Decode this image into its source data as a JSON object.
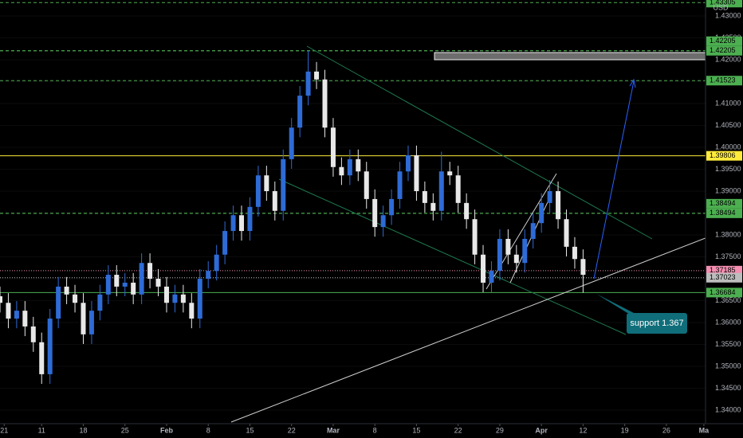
{
  "chart_data": {
    "type": "candlestick",
    "currency": "USD",
    "annotation": "support 1.367",
    "colors": {
      "up": "#2e6bd6",
      "down": "#e8e8e8"
    },
    "x": [
      -5,
      -4,
      -3,
      -2,
      -1,
      0,
      1,
      2,
      3,
      4,
      5,
      6,
      7,
      8,
      9,
      10,
      11,
      12,
      13,
      14,
      15,
      16,
      17,
      18,
      19,
      20,
      21,
      22,
      23,
      24,
      25,
      26,
      27,
      28,
      29,
      30,
      31,
      32,
      33,
      34,
      35,
      36,
      37,
      38,
      39,
      40,
      41,
      42,
      43,
      44,
      45,
      46,
      47,
      48,
      49,
      50,
      51,
      52,
      53,
      54,
      55,
      56,
      57,
      58,
      59,
      60,
      61,
      62,
      63,
      64,
      65
    ],
    "open": [
      1.366,
      1.3645,
      1.3609,
      1.3627,
      1.3591,
      1.3555,
      1.3482,
      1.3609,
      1.3682,
      1.3664,
      1.3645,
      1.3573,
      1.3627,
      1.3664,
      1.3709,
      1.3682,
      1.3691,
      1.3664,
      1.3736,
      1.37,
      1.3682,
      1.3645,
      1.3664,
      1.3645,
      1.3609,
      1.37,
      1.3718,
      1.3755,
      1.3809,
      1.3845,
      1.3809,
      1.3864,
      1.3936,
      1.39,
      1.3855,
      1.3973,
      1.4045,
      1.4118,
      1.4173,
      1.4155,
      1.4045,
      1.3955,
      1.3936,
      1.3973,
      1.3945,
      1.3882,
      1.3818,
      1.3845,
      1.3882,
      1.3945,
      1.3982,
      1.39,
      1.3873,
      1.3855,
      1.3945,
      1.3936,
      1.3873,
      1.3836,
      1.3755,
      1.3691,
      1.3718,
      1.3791,
      1.3755,
      1.3736,
      1.3791,
      1.3827,
      1.3873,
      1.39,
      1.3836,
      1.3773,
      1.3745
    ],
    "high": [
      1.3682,
      1.3667,
      1.3649,
      1.3649,
      1.3613,
      1.3577,
      1.3631,
      1.3704,
      1.3704,
      1.3686,
      1.3667,
      1.3649,
      1.3686,
      1.3731,
      1.3731,
      1.3713,
      1.3713,
      1.3758,
      1.3758,
      1.3722,
      1.3704,
      1.3686,
      1.3686,
      1.3667,
      1.3722,
      1.374,
      1.3777,
      1.3831,
      1.3867,
      1.3867,
      1.3886,
      1.3958,
      1.3958,
      1.3922,
      1.3995,
      1.4067,
      1.414,
      1.422,
      1.4195,
      1.4177,
      1.4067,
      1.3977,
      1.3995,
      1.3995,
      1.3967,
      1.3904,
      1.3867,
      1.3904,
      1.3967,
      1.4004,
      1.4004,
      1.3922,
      1.3895,
      1.399,
      1.3967,
      1.3958,
      1.3895,
      1.3858,
      1.3777,
      1.374,
      1.3813,
      1.3813,
      1.3777,
      1.3813,
      1.3849,
      1.3895,
      1.3925,
      1.3922,
      1.3858,
      1.3795,
      1.3767
    ],
    "low": [
      1.3623,
      1.3587,
      1.3587,
      1.3569,
      1.3533,
      1.346,
      1.346,
      1.3587,
      1.3642,
      1.3623,
      1.3551,
      1.3551,
      1.3605,
      1.3642,
      1.366,
      1.366,
      1.3642,
      1.3642,
      1.3678,
      1.366,
      1.3623,
      1.3623,
      1.3623,
      1.3587,
      1.3587,
      1.3678,
      1.3696,
      1.3733,
      1.3787,
      1.3787,
      1.3787,
      1.3842,
      1.3878,
      1.3833,
      1.3833,
      1.3951,
      1.4023,
      1.4096,
      1.4133,
      1.4023,
      1.3933,
      1.3914,
      1.3914,
      1.3923,
      1.386,
      1.3796,
      1.3796,
      1.3823,
      1.386,
      1.3923,
      1.3878,
      1.3851,
      1.3833,
      1.3833,
      1.3914,
      1.3851,
      1.3814,
      1.3733,
      1.3669,
      1.3669,
      1.3696,
      1.3733,
      1.3714,
      1.3714,
      1.3769,
      1.3805,
      1.3851,
      1.3814,
      1.3751,
      1.3723,
      1.3668
    ],
    "close": [
      1.3645,
      1.3609,
      1.3627,
      1.3591,
      1.3555,
      1.3482,
      1.3609,
      1.3682,
      1.3664,
      1.3645,
      1.3573,
      1.3627,
      1.3664,
      1.3709,
      1.3682,
      1.3691,
      1.3664,
      1.3736,
      1.37,
      1.3682,
      1.3645,
      1.3664,
      1.3645,
      1.3609,
      1.37,
      1.3718,
      1.3755,
      1.3809,
      1.3845,
      1.3809,
      1.3864,
      1.3936,
      1.39,
      1.3855,
      1.3973,
      1.4045,
      1.4118,
      1.4173,
      1.4155,
      1.4045,
      1.3955,
      1.3936,
      1.3973,
      1.3945,
      1.3882,
      1.3818,
      1.3845,
      1.3882,
      1.3945,
      1.3982,
      1.39,
      1.3873,
      1.3855,
      1.3945,
      1.3936,
      1.3873,
      1.3836,
      1.3755,
      1.3691,
      1.3718,
      1.3791,
      1.3755,
      1.3736,
      1.3791,
      1.3827,
      1.3873,
      1.39,
      1.3836,
      1.3773,
      1.3745,
      1.3709
    ],
    "xlim": [
      -5,
      79.7
    ],
    "xticks": [
      {
        "value": -4.5,
        "label": "21"
      },
      {
        "value": 0,
        "label": "11"
      },
      {
        "value": 5,
        "label": "18"
      },
      {
        "value": 10,
        "label": "25"
      },
      {
        "value": 15,
        "label": "Feb"
      },
      {
        "value": 20,
        "label": "8"
      },
      {
        "value": 25,
        "label": "15"
      },
      {
        "value": 30,
        "label": "22"
      },
      {
        "value": 35,
        "label": "Mar"
      },
      {
        "value": 40,
        "label": "8"
      },
      {
        "value": 45,
        "label": "15"
      },
      {
        "value": 50,
        "label": "22"
      },
      {
        "value": 55,
        "label": "29"
      },
      {
        "value": 60,
        "label": "Apr"
      },
      {
        "value": 65,
        "label": "12"
      },
      {
        "value": 70,
        "label": "19"
      },
      {
        "value": 75,
        "label": "26"
      },
      {
        "value": 79.5,
        "label": "Ma"
      }
    ],
    "ylim": [
      1.33691,
      1.43364
    ],
    "yticks": [
      {
        "value": 1.34,
        "label": "1.34000"
      },
      {
        "value": 1.345,
        "label": "1.34500"
      },
      {
        "value": 1.35,
        "label": "1.35000"
      },
      {
        "value": 1.355,
        "label": "1.35500"
      },
      {
        "value": 1.36,
        "label": "1.36000"
      },
      {
        "value": 1.365,
        "label": "1.36500"
      },
      {
        "value": 1.37,
        "label": "1.37000"
      },
      {
        "value": 1.375,
        "label": "1.37500"
      },
      {
        "value": 1.38,
        "label": "1.38000"
      },
      {
        "value": 1.385,
        "label": "1.38500"
      },
      {
        "value": 1.39,
        "label": "1.39000"
      },
      {
        "value": 1.395,
        "label": "1.39500"
      },
      {
        "value": 1.4,
        "label": "1.40000"
      },
      {
        "value": 1.405,
        "label": "1.40500"
      },
      {
        "value": 1.41,
        "label": "1.41000"
      },
      {
        "value": 1.415,
        "label": "1.41500"
      },
      {
        "value": 1.42,
        "label": "1.42000"
      },
      {
        "value": 1.425,
        "label": "1.42500"
      },
      {
        "value": 1.43,
        "label": "1.43000"
      }
    ],
    "levels": [
      {
        "value": 1.43305,
        "color": "#4caf50",
        "style": "dashed"
      },
      {
        "value": 1.42205,
        "color": "#4caf50",
        "style": "dashed"
      },
      {
        "value": 1.42205,
        "color": "#4caf50",
        "style": "dashed"
      },
      {
        "value": 1.41523,
        "color": "#4caf50",
        "style": "dashed"
      },
      {
        "value": 1.39806,
        "color": "#ffeb3b",
        "style": "solid"
      },
      {
        "value": 1.38494,
        "color": "#4caf50",
        "style": "dashed"
      },
      {
        "value": 1.38494,
        "color": "#4caf50",
        "style": "dashed"
      },
      {
        "value": 1.37185,
        "color": "#f48fb1",
        "style": "dotted"
      },
      {
        "value": 1.37023,
        "color": "#bdbdbd",
        "style": "dotted"
      },
      {
        "value": 1.36684,
        "color": "#4caf50",
        "style": "solid"
      }
    ]
  }
}
